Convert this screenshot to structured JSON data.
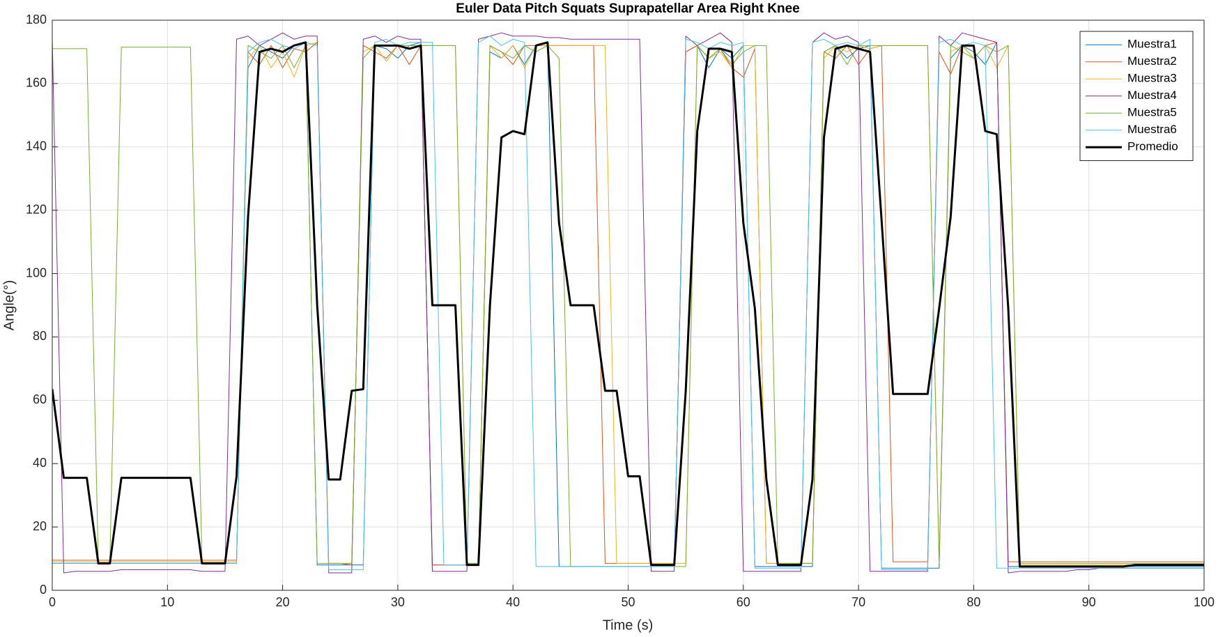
{
  "chart_data": {
    "type": "line",
    "title": "Euler Data Pitch Squats Suprapatellar Area Right Knee",
    "x_label": "Time (s)",
    "y_label": "Angle(°)",
    "x": [
      0,
      1,
      2,
      3,
      4,
      5,
      6,
      7,
      8,
      9,
      10,
      11,
      12,
      13,
      14,
      15,
      16,
      17,
      18,
      19,
      20,
      21,
      22,
      23,
      24,
      25,
      26,
      27,
      28,
      29,
      30,
      31,
      32,
      33,
      34,
      35,
      36,
      37,
      38,
      39,
      40,
      41,
      42,
      43,
      44,
      45,
      46,
      47,
      48,
      49,
      50,
      51,
      52,
      53,
      54,
      55,
      56,
      57,
      58,
      59,
      60,
      61,
      62,
      63,
      64,
      65,
      66,
      67,
      68,
      69,
      70,
      71,
      72,
      73,
      74,
      75,
      76,
      77,
      78,
      79,
      80,
      81,
      82,
      83,
      84,
      85,
      86,
      87,
      88,
      89,
      90,
      91,
      92,
      93,
      94,
      95,
      96,
      97,
      98,
      99,
      100
    ],
    "xlim": [
      0,
      100
    ],
    "xticks": [
      0,
      10,
      20,
      30,
      40,
      50,
      60,
      70,
      80,
      90,
      100
    ],
    "ylim": [
      0,
      180
    ],
    "yticks": [
      0,
      20,
      40,
      60,
      80,
      100,
      120,
      140,
      160,
      180
    ],
    "grid": true,
    "legend": "top-right",
    "series": [
      {
        "name": "Muestra1",
        "color": "#0072bd",
        "line_width": 1,
        "values": [
          8.5,
          8.5,
          8.5,
          8.5,
          8.5,
          8.5,
          8.5,
          8.5,
          8.5,
          8.5,
          8.5,
          8.5,
          8.5,
          8.5,
          8.5,
          8.5,
          8.5,
          165,
          172,
          170,
          168,
          172,
          173,
          8,
          8,
          8,
          8,
          8,
          172,
          171,
          168,
          172,
          173,
          8,
          8,
          8,
          8,
          8,
          170,
          168,
          172,
          166,
          172,
          173,
          7.5,
          7.5,
          7.5,
          7.5,
          7.5,
          7.5,
          7.5,
          7.5,
          7.5,
          7.5,
          7.5,
          170,
          172,
          165,
          171,
          168,
          172,
          7.5,
          7.5,
          7.5,
          7.5,
          7.5,
          7.5,
          170,
          172,
          168,
          171,
          172,
          7,
          7,
          7,
          7,
          7,
          7,
          168,
          172,
          170,
          166,
          173,
          7.5,
          7.5,
          7.5,
          7.5,
          7.5,
          7.5,
          7.5,
          7.5,
          7.5,
          7.5,
          7.5,
          7.5,
          7.5,
          7.5,
          7.5,
          7.5,
          7.5,
          7.5
        ]
      },
      {
        "name": "Muestra2",
        "color": "#d95319",
        "line_width": 1,
        "values": [
          9.5,
          9.5,
          9.5,
          9.5,
          9.5,
          9.5,
          9.5,
          9.5,
          9.5,
          9.5,
          9.5,
          9.5,
          9.5,
          9.5,
          9.5,
          9.5,
          9.5,
          170,
          166,
          172,
          165,
          171,
          170,
          173,
          8.5,
          8.5,
          8,
          172,
          170,
          168,
          172,
          166,
          172,
          8,
          8,
          8,
          8,
          8,
          172,
          170,
          166,
          172,
          172,
          172,
          172,
          172,
          172,
          172,
          8.5,
          8.5,
          8.5,
          8.5,
          8.5,
          8.5,
          8.5,
          170,
          172,
          168,
          171,
          165,
          162,
          171,
          8.5,
          8.5,
          8.5,
          8.5,
          8.5,
          170,
          168,
          172,
          166,
          171,
          172,
          9,
          9,
          9,
          9,
          170,
          163,
          172,
          168,
          172,
          173,
          9,
          9,
          9,
          9,
          9,
          9,
          9,
          9,
          9,
          9,
          9,
          9,
          9,
          9,
          9,
          9,
          9,
          9
        ]
      },
      {
        "name": "Muestra3",
        "color": "#edb120",
        "line_width": 1,
        "values": [
          9,
          9,
          9,
          9,
          9,
          9,
          9,
          9,
          9,
          9,
          9,
          9,
          9,
          9,
          9,
          9,
          9,
          168,
          172,
          165,
          170,
          162,
          172,
          173,
          8.5,
          8.5,
          8.5,
          170,
          172,
          167,
          172,
          172,
          172,
          172,
          172,
          172,
          8.5,
          8.5,
          172,
          168,
          172,
          165,
          172,
          172,
          172,
          172,
          172,
          172,
          172,
          8.5,
          8.5,
          8.5,
          8.5,
          8.5,
          8.5,
          8.5,
          172,
          168,
          170,
          165,
          172,
          172,
          8.5,
          8.5,
          8.5,
          8.5,
          8.5,
          168,
          172,
          170,
          172,
          171,
          172,
          172,
          172,
          172,
          172,
          8.5,
          170,
          172,
          168,
          172,
          165,
          172,
          8,
          8,
          8,
          8,
          8,
          8,
          8,
          8,
          8,
          8,
          8,
          8,
          8,
          8,
          8,
          8,
          8
        ]
      },
      {
        "name": "Muestra4",
        "color": "#7e2f8e",
        "line_width": 1,
        "values": [
          174,
          5.5,
          6,
          6,
          6,
          6,
          6.5,
          6.5,
          6.5,
          6.5,
          6.5,
          6.5,
          6.5,
          6,
          6,
          6,
          174,
          175,
          172,
          174,
          176,
          174,
          175,
          175,
          5.5,
          5.5,
          5.5,
          174,
          175,
          173,
          175,
          174,
          174,
          6,
          6,
          6,
          6,
          174,
          175,
          176,
          175,
          175,
          175,
          174.5,
          174.5,
          174,
          174,
          174,
          174,
          174,
          174,
          174,
          6,
          6,
          6,
          175,
          172,
          174,
          176,
          173,
          6,
          6,
          6,
          6,
          6,
          6,
          173,
          176,
          174,
          175,
          173,
          6,
          6,
          6,
          6,
          6,
          6,
          175,
          172,
          176,
          175,
          174,
          173,
          5.5,
          6,
          6,
          6,
          6,
          6,
          6.5,
          6.5,
          7,
          7,
          7,
          7,
          7,
          7,
          7,
          7,
          7,
          7
        ]
      },
      {
        "name": "Muestra5",
        "color": "#77ac30",
        "line_width": 1,
        "values": [
          171,
          171,
          171,
          171,
          8.5,
          8.5,
          171.5,
          171.5,
          171.5,
          171.5,
          171.5,
          171.5,
          171.5,
          8.5,
          8.5,
          8.5,
          8.5,
          172,
          170,
          168,
          172,
          165,
          172,
          8.5,
          8.5,
          8.5,
          8.5,
          168,
          172,
          172,
          172,
          172,
          172,
          172,
          172,
          172,
          8.5,
          8.5,
          172,
          170,
          168,
          172,
          170,
          172,
          168,
          7.5,
          7.5,
          7.5,
          7.5,
          7.5,
          7.5,
          7.5,
          7.5,
          7.5,
          7.5,
          7.5,
          172,
          168,
          171,
          166,
          170,
          172,
          172,
          8.5,
          8.5,
          8.5,
          8.5,
          170,
          172,
          166,
          172,
          172,
          172,
          172,
          172,
          172,
          172,
          8.5,
          172,
          170,
          168,
          172,
          170,
          172,
          8.5,
          8.5,
          8.5,
          8.5,
          8.5,
          8.5,
          8.5,
          8.5,
          8.5,
          8.5,
          8.5,
          8.5,
          8.5,
          8.5,
          8.5,
          8.5,
          8.5
        ]
      },
      {
        "name": "Muestra6",
        "color": "#4dbeee",
        "line_width": 1,
        "values": [
          8.5,
          8.5,
          8.5,
          8.5,
          8.5,
          8.5,
          8.5,
          8.5,
          8.5,
          8.5,
          8.5,
          8.5,
          8.5,
          8.5,
          8.5,
          8.5,
          8.5,
          170,
          173,
          174,
          172,
          171,
          173,
          172,
          6.5,
          6.5,
          6.5,
          6.5,
          173,
          174,
          172,
          173,
          173,
          173,
          8,
          8,
          8,
          173,
          175,
          172,
          174,
          173,
          7.5,
          7.5,
          7.5,
          7.5,
          7.5,
          7.5,
          7.5,
          7.5,
          7.5,
          7.5,
          7.5,
          7.5,
          7.5,
          174,
          173,
          171,
          173,
          172,
          173,
          7,
          7,
          7,
          7,
          7,
          173,
          174,
          172,
          173,
          172,
          174,
          6.5,
          6.5,
          6.5,
          6.5,
          6.5,
          173,
          174,
          172,
          173,
          172,
          7,
          7,
          7,
          7,
          7,
          7,
          7,
          7,
          7,
          7,
          7,
          7,
          7,
          7,
          7,
          7,
          7,
          7,
          7
        ]
      },
      {
        "name": "Promedio",
        "color": "#000000",
        "line_width": 3,
        "values": [
          63.5,
          35.5,
          35.5,
          35.5,
          8.5,
          8.5,
          35.5,
          35.5,
          35.5,
          35.5,
          35.5,
          35.5,
          35.5,
          8.5,
          8.5,
          8.5,
          36,
          118,
          170,
          171,
          170,
          172,
          173,
          90,
          35,
          35,
          63,
          63.5,
          172,
          172,
          172,
          171,
          172,
          90,
          90,
          90,
          8,
          8,
          90,
          143,
          145,
          144,
          172,
          173,
          116,
          90,
          90,
          90,
          63,
          63,
          36,
          36,
          8,
          8,
          8,
          63,
          145,
          171,
          171,
          170,
          116,
          89,
          35,
          8,
          8,
          8,
          35,
          143,
          171,
          172,
          171,
          170,
          117,
          62,
          62,
          62,
          62,
          89,
          118,
          172,
          172,
          145,
          144,
          89,
          7.5,
          7.5,
          7.5,
          7.5,
          7.5,
          7.5,
          7.5,
          7.5,
          7.5,
          7.5,
          8,
          8,
          8,
          8,
          8,
          8,
          8
        ]
      }
    ]
  }
}
